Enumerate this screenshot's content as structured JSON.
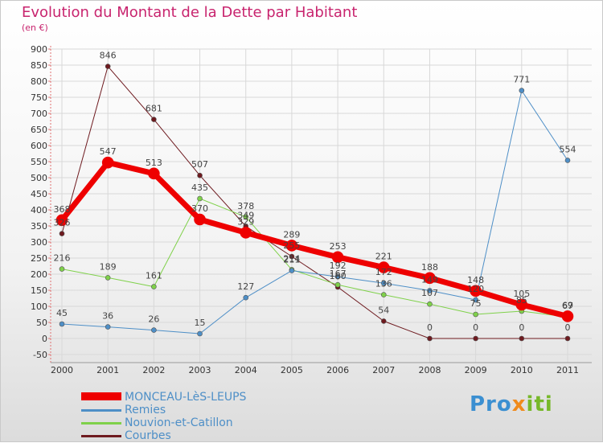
{
  "title": "Evolution du Montant de la Dette par Habitant",
  "subtitle": "(en €)",
  "logo": {
    "p1": "Pro",
    "p2": "x",
    "p3": "iti"
  },
  "chart_data": {
    "type": "line",
    "title": "Evolution du Montant de la Dette par Habitant",
    "ylabel": "(en €)",
    "xlabel": "",
    "ylim": [
      -50,
      900
    ],
    "yticks": [
      "-50",
      "0",
      "50",
      "100",
      "150",
      "200",
      "250",
      "300",
      "350",
      "400",
      "450",
      "500",
      "550",
      "600",
      "650",
      "700",
      "750",
      "800",
      "850",
      "900"
    ],
    "categories": [
      "2000",
      "2001",
      "2002",
      "2003",
      "2004",
      "2005",
      "2006",
      "2007",
      "2008",
      "2009",
      "2010",
      "2011"
    ],
    "series": [
      {
        "name": "Courbes",
        "color": "#6e1a1f",
        "width": 1,
        "values": [
          326,
          846,
          681,
          507,
          349,
          255,
          160,
          54,
          0,
          0,
          0,
          0
        ],
        "labels": [
          "326",
          "846",
          "681",
          "507",
          "349",
          "255",
          "160",
          "54",
          "0",
          "0",
          "0",
          "0"
        ]
      },
      {
        "name": "Nouvion-et-Catillon",
        "color": "#7fd14a",
        "width": 1,
        "values": [
          216,
          189,
          161,
          435,
          378,
          214,
          167,
          136,
          107,
          75,
          85,
          67
        ],
        "labels": [
          "216",
          "189",
          "161",
          "435",
          "378",
          "214",
          "167",
          "136",
          "107",
          "75",
          "85",
          "67"
        ]
      },
      {
        "name": "Remies",
        "color": "#4e8fc7",
        "width": 1,
        "values": [
          45,
          36,
          26,
          15,
          127,
          211,
          192,
          172,
          149,
          120,
          771,
          554
        ],
        "labels": [
          "45",
          "36",
          "26",
          "15",
          "127",
          "211",
          "192",
          "172",
          "149",
          "120",
          "771",
          "554"
        ]
      },
      {
        "name": "MONCEAU-LèS-LEUPS",
        "color": "#ee0000",
        "width": 7,
        "values": [
          368,
          547,
          513,
          370,
          329,
          289,
          253,
          221,
          188,
          148,
          105,
          69
        ],
        "labels": [
          "368",
          "547",
          "513",
          "370",
          "329",
          "289",
          "253",
          "221",
          "188",
          "148",
          "105",
          "69"
        ]
      }
    ]
  },
  "legend": [
    {
      "name": "MONCEAU-LèS-LEUPS",
      "color": "#ee0000"
    },
    {
      "name": "Remies",
      "color": "#4e8fc7"
    },
    {
      "name": "Nouvion-et-Catillon",
      "color": "#7fd14a"
    },
    {
      "name": "Courbes",
      "color": "#6e1a1f"
    }
  ]
}
